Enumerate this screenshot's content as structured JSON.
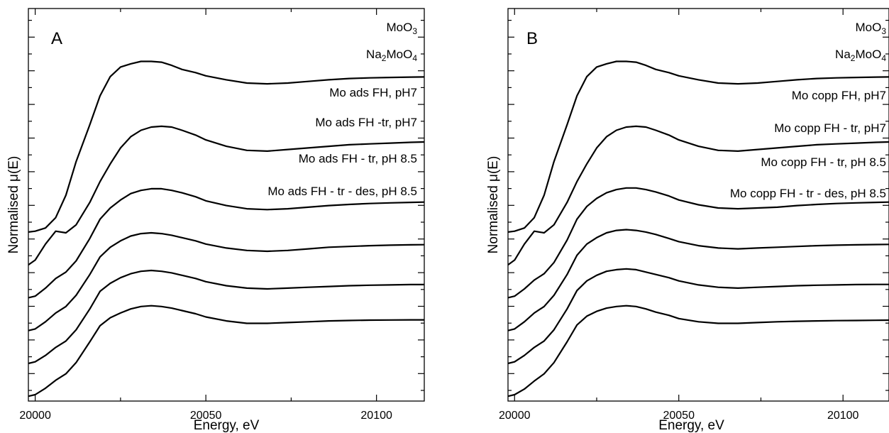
{
  "chart_data": [
    {
      "type": "line",
      "panel_label": "A",
      "xlabel": "Energy, eV",
      "ylabel": "Normalised μ(E)",
      "xlim": [
        19998,
        20114
      ],
      "x_ticks": [
        "20000",
        "20050",
        "20100"
      ],
      "y_ticks_labeled": false,
      "series": [
        {
          "name": "MoO3",
          "name_base": "MoO",
          "name_sub": "3",
          "sub_only": true,
          "peak_x": 20037,
          "peak_y": 11.9,
          "x": [
            19998,
            20000,
            20003,
            20006,
            20009,
            20012,
            20016,
            20019,
            20022,
            20025,
            20028,
            20031,
            20034,
            20037,
            20040,
            20043,
            20047,
            20050,
            20056,
            20062,
            20068,
            20074,
            20080,
            20086,
            20092,
            20098,
            20104,
            20110,
            20114
          ],
          "y": [
            0.3,
            0.35,
            0.55,
            1.2,
            2.6,
            4.7,
            7.0,
            8.8,
            10.0,
            10.6,
            10.8,
            10.95,
            10.95,
            10.9,
            10.7,
            10.45,
            10.25,
            10.05,
            9.8,
            9.6,
            9.55,
            9.6,
            9.7,
            9.8,
            9.88,
            9.92,
            9.95,
            9.97,
            9.98
          ]
        },
        {
          "name": "Na2MoO4",
          "name_parts": [
            "Na",
            "2",
            "MoO",
            "4"
          ],
          "x": [
            19998,
            20000,
            20003,
            20006,
            20009,
            20012,
            20016,
            20019,
            20022,
            20025,
            20028,
            20031,
            20034,
            20037,
            20040,
            20043,
            20047,
            20050,
            20056,
            20062,
            20068,
            20074,
            20080,
            20086,
            20092,
            20098,
            20104,
            20110,
            20114
          ],
          "y": [
            0.3,
            0.6,
            1.6,
            2.4,
            2.3,
            2.8,
            4.2,
            5.5,
            6.6,
            7.6,
            8.3,
            8.7,
            8.9,
            8.95,
            8.9,
            8.7,
            8.4,
            8.1,
            7.7,
            7.45,
            7.4,
            7.5,
            7.6,
            7.7,
            7.8,
            7.85,
            7.9,
            7.95,
            7.97
          ]
        },
        {
          "name": "Mo ads FH, pH7",
          "x": [
            19998,
            20000,
            20003,
            20006,
            20009,
            20012,
            20016,
            20019,
            20022,
            20025,
            20028,
            20031,
            20034,
            20037,
            20040,
            20043,
            20047,
            20050,
            20056,
            20062,
            20068,
            20074,
            20080,
            20086,
            20092,
            20098,
            20104,
            20110,
            20114
          ],
          "y": [
            0.3,
            0.4,
            0.9,
            1.5,
            1.9,
            2.6,
            4.0,
            5.2,
            5.9,
            6.4,
            6.8,
            7.0,
            7.1,
            7.1,
            7.0,
            6.85,
            6.6,
            6.35,
            6.05,
            5.85,
            5.8,
            5.85,
            5.95,
            6.05,
            6.12,
            6.18,
            6.22,
            6.25,
            6.27
          ]
        },
        {
          "name": "Mo ads FH -tr, pH7",
          "x": [
            19998,
            20000,
            20003,
            20006,
            20009,
            20012,
            20016,
            20019,
            20022,
            20025,
            20028,
            20031,
            20034,
            20037,
            20040,
            20043,
            20047,
            20050,
            20056,
            20062,
            20068,
            20074,
            20080,
            20086,
            20092,
            20098,
            20104,
            20110,
            20114
          ],
          "y": [
            0.3,
            0.4,
            0.85,
            1.4,
            1.8,
            2.5,
            3.8,
            4.9,
            5.5,
            5.9,
            6.2,
            6.35,
            6.4,
            6.35,
            6.25,
            6.1,
            5.9,
            5.7,
            5.45,
            5.3,
            5.25,
            5.3,
            5.4,
            5.5,
            5.55,
            5.6,
            5.63,
            5.65,
            5.66
          ]
        },
        {
          "name": "Mo ads FH - tr, pH 8.5",
          "x": [
            19998,
            20000,
            20003,
            20006,
            20009,
            20012,
            20016,
            20019,
            20022,
            20025,
            20028,
            20031,
            20034,
            20037,
            20040,
            20043,
            20047,
            20050,
            20056,
            20062,
            20068,
            20074,
            20080,
            20086,
            20092,
            20098,
            20104,
            20110,
            20114
          ],
          "y": [
            0.3,
            0.4,
            0.8,
            1.3,
            1.7,
            2.4,
            3.7,
            4.8,
            5.3,
            5.65,
            5.9,
            6.05,
            6.1,
            6.05,
            5.95,
            5.8,
            5.6,
            5.4,
            5.15,
            5.0,
            4.95,
            5.0,
            5.05,
            5.1,
            5.15,
            5.18,
            5.2,
            5.22,
            5.22
          ]
        },
        {
          "name": "Mo ads FH - tr - des, pH 8.5",
          "x": [
            19998,
            20000,
            20003,
            20006,
            20009,
            20012,
            20016,
            20019,
            20022,
            20025,
            20028,
            20031,
            20034,
            20037,
            20040,
            20043,
            20047,
            20050,
            20056,
            20062,
            20068,
            20074,
            20080,
            20086,
            20092,
            20098,
            20104,
            20110,
            20114
          ],
          "y": [
            0.3,
            0.4,
            0.8,
            1.3,
            1.7,
            2.4,
            3.7,
            4.7,
            5.2,
            5.5,
            5.75,
            5.9,
            5.95,
            5.9,
            5.8,
            5.65,
            5.45,
            5.25,
            5.0,
            4.85,
            4.85,
            4.9,
            4.95,
            5.0,
            5.03,
            5.05,
            5.06,
            5.07,
            5.07
          ]
        }
      ]
    },
    {
      "type": "line",
      "panel_label": "B",
      "xlabel": "Energy, eV",
      "ylabel": "Normalised μ(E)",
      "xlim": [
        19998,
        20114
      ],
      "x_ticks": [
        "20000",
        "20050",
        "20100"
      ],
      "y_ticks_labeled": false,
      "series": [
        {
          "name": "MoO3",
          "name_base": "MoO",
          "name_sub": "3",
          "x": [
            19998,
            20000,
            20003,
            20006,
            20009,
            20012,
            20016,
            20019,
            20022,
            20025,
            20028,
            20031,
            20034,
            20037,
            20040,
            20043,
            20047,
            20050,
            20056,
            20062,
            20068,
            20074,
            20080,
            20086,
            20092,
            20098,
            20104,
            20110,
            20114
          ],
          "y": [
            0.3,
            0.35,
            0.55,
            1.2,
            2.6,
            4.7,
            7.0,
            8.8,
            10.0,
            10.6,
            10.8,
            10.95,
            10.95,
            10.9,
            10.7,
            10.45,
            10.25,
            10.05,
            9.8,
            9.6,
            9.55,
            9.6,
            9.7,
            9.8,
            9.88,
            9.92,
            9.95,
            9.97,
            9.98
          ]
        },
        {
          "name": "Na2MoO4",
          "name_parts": [
            "Na",
            "2",
            "MoO",
            "4"
          ],
          "x": [
            19998,
            20000,
            20003,
            20006,
            20009,
            20012,
            20016,
            20019,
            20022,
            20025,
            20028,
            20031,
            20034,
            20037,
            20040,
            20043,
            20047,
            20050,
            20056,
            20062,
            20068,
            20074,
            20080,
            20086,
            20092,
            20098,
            20104,
            20110,
            20114
          ],
          "y": [
            0.3,
            0.6,
            1.6,
            2.4,
            2.3,
            2.8,
            4.2,
            5.5,
            6.6,
            7.6,
            8.3,
            8.7,
            8.9,
            8.95,
            8.9,
            8.7,
            8.4,
            8.1,
            7.7,
            7.45,
            7.4,
            7.5,
            7.6,
            7.7,
            7.8,
            7.85,
            7.9,
            7.95,
            7.97
          ]
        },
        {
          "name": "Mo copp FH, pH7",
          "x": [
            19998,
            20000,
            20003,
            20006,
            20009,
            20012,
            20016,
            20019,
            20022,
            20025,
            20028,
            20031,
            20034,
            20037,
            20040,
            20043,
            20047,
            20050,
            20056,
            20062,
            20068,
            20074,
            20080,
            20086,
            20092,
            20098,
            20104,
            20110,
            20114
          ],
          "y": [
            0.3,
            0.4,
            0.85,
            1.4,
            1.8,
            2.5,
            3.9,
            5.2,
            6.0,
            6.5,
            6.85,
            7.05,
            7.15,
            7.15,
            7.05,
            6.9,
            6.65,
            6.4,
            6.1,
            5.9,
            5.85,
            5.9,
            5.95,
            6.05,
            6.12,
            6.18,
            6.22,
            6.25,
            6.27
          ]
        },
        {
          "name": "Mo copp FH - tr, pH7",
          "x": [
            19998,
            20000,
            20003,
            20006,
            20009,
            20012,
            20016,
            20019,
            20022,
            20025,
            20028,
            20031,
            20034,
            20037,
            20040,
            20043,
            20047,
            20050,
            20056,
            20062,
            20068,
            20074,
            20080,
            20086,
            20092,
            20098,
            20104,
            20110,
            20114
          ],
          "y": [
            0.3,
            0.4,
            0.85,
            1.4,
            1.8,
            2.5,
            3.8,
            5.0,
            5.7,
            6.1,
            6.4,
            6.55,
            6.6,
            6.55,
            6.45,
            6.3,
            6.05,
            5.85,
            5.6,
            5.45,
            5.4,
            5.45,
            5.5,
            5.55,
            5.6,
            5.63,
            5.65,
            5.67,
            5.68
          ]
        },
        {
          "name": "Mo copp FH - tr, pH 8.5",
          "x": [
            19998,
            20000,
            20003,
            20006,
            20009,
            20012,
            20016,
            20019,
            20022,
            20025,
            20028,
            20031,
            20034,
            20037,
            20040,
            20043,
            20047,
            20050,
            20056,
            20062,
            20068,
            20074,
            20080,
            20086,
            20092,
            20098,
            20104,
            20110,
            20114
          ],
          "y": [
            0.3,
            0.4,
            0.8,
            1.3,
            1.7,
            2.4,
            3.7,
            4.85,
            5.45,
            5.8,
            6.05,
            6.15,
            6.2,
            6.15,
            6.0,
            5.85,
            5.65,
            5.45,
            5.2,
            5.05,
            5.0,
            5.05,
            5.1,
            5.15,
            5.18,
            5.2,
            5.22,
            5.23,
            5.23
          ]
        },
        {
          "name": "Mo copp FH - tr - des, pH 8.5",
          "x": [
            19998,
            20000,
            20003,
            20006,
            20009,
            20012,
            20016,
            20019,
            20022,
            20025,
            20028,
            20031,
            20034,
            20037,
            20040,
            20043,
            20047,
            20050,
            20056,
            20062,
            20068,
            20074,
            20080,
            20086,
            20092,
            20098,
            20104,
            20110,
            20114
          ],
          "y": [
            0.3,
            0.4,
            0.75,
            1.25,
            1.7,
            2.4,
            3.7,
            4.75,
            5.3,
            5.6,
            5.8,
            5.9,
            5.95,
            5.9,
            5.75,
            5.55,
            5.35,
            5.15,
            4.95,
            4.85,
            4.85,
            4.9,
            4.95,
            4.98,
            5.0,
            5.02,
            5.03,
            5.04,
            5.05
          ]
        }
      ]
    }
  ]
}
